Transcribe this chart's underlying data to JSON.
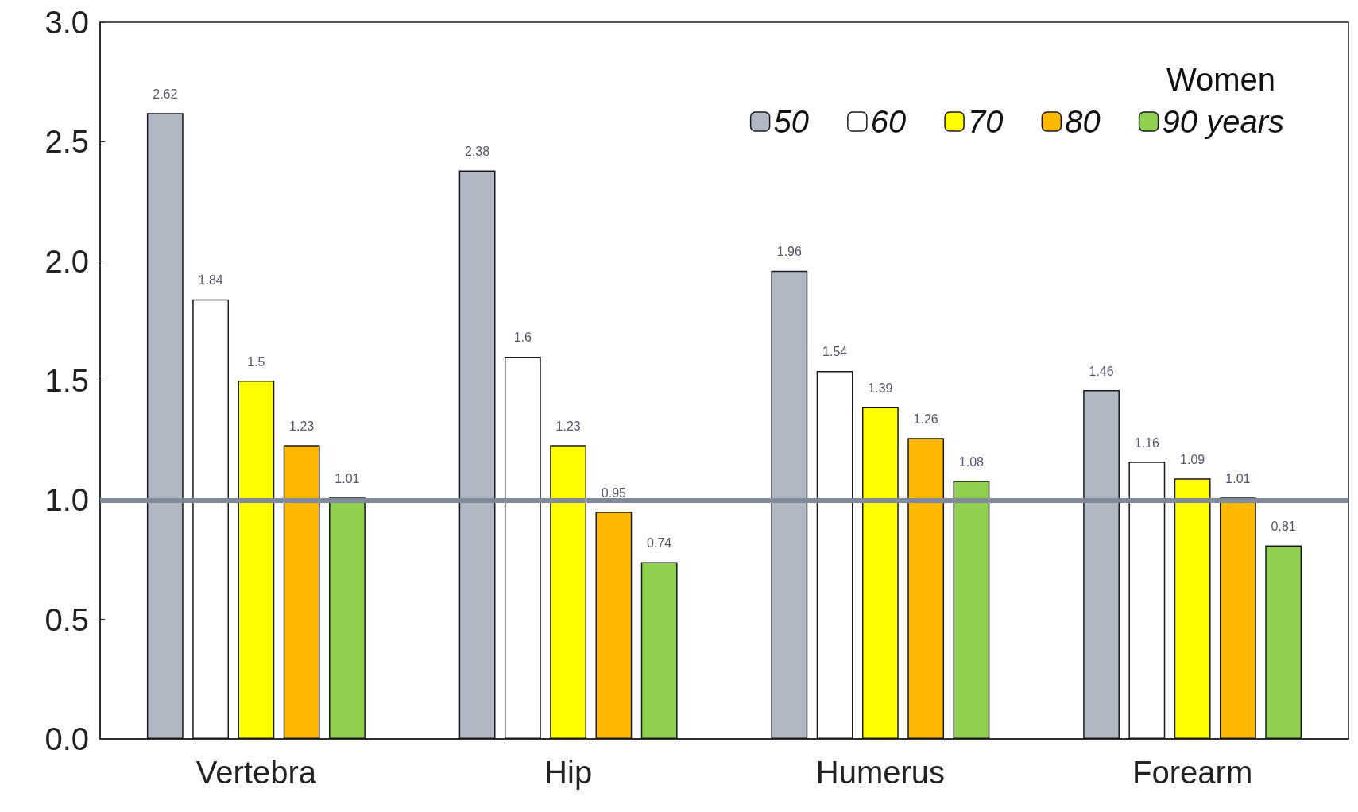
{
  "chart_data": {
    "type": "bar",
    "legend_title": "Women",
    "categories": [
      "Vertebra",
      "Hip",
      "Humerus",
      "Forearm"
    ],
    "series": [
      {
        "name": "50",
        "color": "#b1b8c4",
        "values": [
          2.62,
          2.38,
          1.96,
          1.46
        ]
      },
      {
        "name": "60",
        "color": "#ffffff",
        "values": [
          1.84,
          1.6,
          1.54,
          1.16
        ]
      },
      {
        "name": "70",
        "color": "#ffff00",
        "values": [
          1.5,
          1.23,
          1.39,
          1.09
        ]
      },
      {
        "name": "80",
        "color": "#ffb800",
        "values": [
          1.23,
          0.95,
          1.26,
          1.01
        ]
      },
      {
        "name": "90 years",
        "color": "#8fd14f",
        "values": [
          1.01,
          0.74,
          1.08,
          0.81
        ]
      }
    ],
    "ylim": [
      0,
      3
    ],
    "yticks": [
      {
        "value": 0,
        "label": "0.0"
      },
      {
        "value": 0.5,
        "label": "0.5"
      },
      {
        "value": 1,
        "label": "1.0"
      },
      {
        "value": 1.5,
        "label": "1.5"
      },
      {
        "value": 2,
        "label": "2.0"
      },
      {
        "value": 2.5,
        "label": "2.5"
      },
      {
        "value": 3,
        "label": "3.0"
      }
    ],
    "ref_lines": [
      {
        "axis": "y",
        "value": 1,
        "color": "#7f8a9b"
      }
    ],
    "data_labels": true,
    "grid": false,
    "legend": "top right"
  }
}
